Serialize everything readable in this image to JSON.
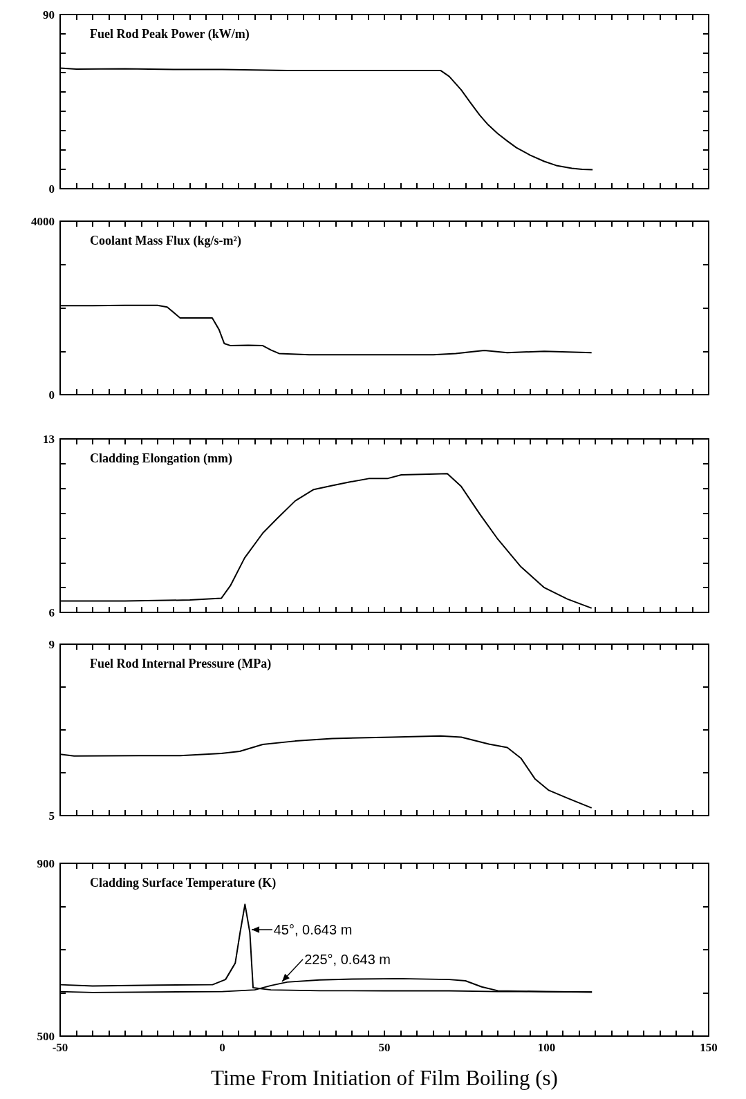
{
  "chart_data": [
    {
      "type": "line",
      "title": "Fuel Rod Peak Power (kW/m)",
      "xlim": [
        -50,
        150
      ],
      "ylim": [
        0,
        90
      ],
      "xticks": [
        -50,
        {
          "value": -45,
          "label": null
        },
        {
          "value": -40,
          "label": null
        },
        {
          "value": -35,
          "label": null
        },
        {
          "value": -30,
          "label": null
        },
        {
          "value": -25,
          "label": null
        },
        {
          "value": -20,
          "label": null
        },
        {
          "value": -15,
          "label": null
        },
        {
          "value": -10,
          "label": null
        },
        {
          "value": -5,
          "label": null
        },
        0,
        {
          "value": 5,
          "label": null
        },
        {
          "value": 10,
          "label": null
        },
        {
          "value": 15,
          "label": null
        },
        {
          "value": 20,
          "label": null
        },
        {
          "value": 25,
          "label": null
        },
        {
          "value": 30,
          "label": null
        },
        {
          "value": 35,
          "label": null
        },
        {
          "value": 40,
          "label": null
        },
        {
          "value": 45,
          "label": null
        },
        50,
        {
          "value": 55,
          "label": null
        },
        {
          "value": 60,
          "label": null
        },
        {
          "value": 65,
          "label": null
        },
        {
          "value": 70,
          "label": null
        },
        {
          "value": 75,
          "label": null
        },
        {
          "value": 80,
          "label": null
        },
        {
          "value": 85,
          "label": null
        },
        {
          "value": 90,
          "label": null
        },
        {
          "value": 95,
          "label": null
        },
        100,
        {
          "value": 105,
          "label": null
        },
        {
          "value": 110,
          "label": null
        },
        {
          "value": 115,
          "label": null
        },
        {
          "value": 120,
          "label": null
        },
        {
          "value": 125,
          "label": null
        },
        {
          "value": 130,
          "label": null
        },
        {
          "value": 135,
          "label": null
        },
        {
          "value": 140,
          "label": null
        },
        {
          "value": 145,
          "label": null
        },
        150
      ],
      "yticks": [
        0,
        {
          "value": 10,
          "label": null
        },
        {
          "value": 20,
          "label": null
        },
        {
          "value": 30,
          "label": null
        },
        {
          "value": 40,
          "label": null
        },
        {
          "value": 50,
          "label": null
        },
        {
          "value": 60,
          "label": null
        },
        {
          "value": 70,
          "label": null
        },
        {
          "value": 80,
          "label": null
        },
        90
      ],
      "tick_labels": "y",
      "x": [
        -50,
        -45,
        -30,
        -15,
        0,
        20,
        40,
        60,
        67.3,
        70,
        73.7,
        76.5,
        79.4,
        82,
        85,
        88,
        90.7,
        95,
        99.3,
        103,
        107.8,
        111,
        114.2
      ],
      "series": [
        {
          "color": "#000000",
          "values": [
            62.3,
            61.8,
            62,
            61.6,
            61.6,
            61.1,
            61.1,
            61.1,
            61.1,
            58,
            51,
            44.5,
            38,
            33,
            28.4,
            24.5,
            21.2,
            17.3,
            14.1,
            12,
            10.5,
            10,
            9.8
          ]
        }
      ]
    },
    {
      "type": "line",
      "title": "Coolant Mass Flux (kg/s-m²)",
      "xlim": [
        -50,
        150
      ],
      "ylim": [
        0,
        4000
      ],
      "xticks": [
        -50,
        {
          "value": -45,
          "label": null
        },
        {
          "value": -40,
          "label": null
        },
        {
          "value": -35,
          "label": null
        },
        {
          "value": -30,
          "label": null
        },
        {
          "value": -25,
          "label": null
        },
        {
          "value": -20,
          "label": null
        },
        {
          "value": -15,
          "label": null
        },
        {
          "value": -10,
          "label": null
        },
        {
          "value": -5,
          "label": null
        },
        0,
        {
          "value": 5,
          "label": null
        },
        {
          "value": 10,
          "label": null
        },
        {
          "value": 15,
          "label": null
        },
        {
          "value": 20,
          "label": null
        },
        {
          "value": 25,
          "label": null
        },
        {
          "value": 30,
          "label": null
        },
        {
          "value": 35,
          "label": null
        },
        {
          "value": 40,
          "label": null
        },
        {
          "value": 45,
          "label": null
        },
        50,
        {
          "value": 55,
          "label": null
        },
        {
          "value": 60,
          "label": null
        },
        {
          "value": 65,
          "label": null
        },
        {
          "value": 70,
          "label": null
        },
        {
          "value": 75,
          "label": null
        },
        {
          "value": 80,
          "label": null
        },
        {
          "value": 85,
          "label": null
        },
        {
          "value": 90,
          "label": null
        },
        {
          "value": 95,
          "label": null
        },
        100,
        {
          "value": 105,
          "label": null
        },
        {
          "value": 110,
          "label": null
        },
        {
          "value": 115,
          "label": null
        },
        {
          "value": 120,
          "label": null
        },
        {
          "value": 125,
          "label": null
        },
        {
          "value": 130,
          "label": null
        },
        {
          "value": 135,
          "label": null
        },
        {
          "value": 140,
          "label": null
        },
        {
          "value": 145,
          "label": null
        },
        150
      ],
      "yticks": [
        0,
        {
          "value": 1000,
          "label": null
        },
        {
          "value": 2000,
          "label": null
        },
        {
          "value": 3000,
          "label": null
        },
        4000
      ],
      "tick_labels": "y",
      "x": [
        -50,
        -40,
        -30,
        -20,
        -17,
        -13,
        -3.1,
        -1,
        0.6,
        2.6,
        8,
        12.5,
        15,
        17.5,
        26.8,
        40,
        55,
        65.1,
        72,
        80.8,
        87.9,
        99.3,
        113.9
      ],
      "series": [
        {
          "color": "#000000",
          "values": [
            2050,
            2050,
            2060,
            2060,
            2020,
            1770,
            1770,
            1500,
            1180,
            1130,
            1140,
            1130,
            1030,
            950,
            920,
            920,
            920,
            920,
            950,
            1020,
            970,
            1000,
            970
          ]
        }
      ]
    },
    {
      "type": "line",
      "title": "Cladding Elongation (mm)",
      "xlim": [
        -50,
        150
      ],
      "ylim": [
        6,
        13
      ],
      "xticks": [
        -50,
        {
          "value": -45,
          "label": null
        },
        {
          "value": -40,
          "label": null
        },
        {
          "value": -35,
          "label": null
        },
        {
          "value": -30,
          "label": null
        },
        {
          "value": -25,
          "label": null
        },
        {
          "value": -20,
          "label": null
        },
        {
          "value": -15,
          "label": null
        },
        {
          "value": -10,
          "label": null
        },
        {
          "value": -5,
          "label": null
        },
        0,
        {
          "value": 5,
          "label": null
        },
        {
          "value": 10,
          "label": null
        },
        {
          "value": 15,
          "label": null
        },
        {
          "value": 20,
          "label": null
        },
        {
          "value": 25,
          "label": null
        },
        {
          "value": 30,
          "label": null
        },
        {
          "value": 35,
          "label": null
        },
        {
          "value": 40,
          "label": null
        },
        {
          "value": 45,
          "label": null
        },
        50,
        {
          "value": 55,
          "label": null
        },
        {
          "value": 60,
          "label": null
        },
        {
          "value": 65,
          "label": null
        },
        {
          "value": 70,
          "label": null
        },
        {
          "value": 75,
          "label": null
        },
        {
          "value": 80,
          "label": null
        },
        {
          "value": 85,
          "label": null
        },
        {
          "value": 90,
          "label": null
        },
        {
          "value": 95,
          "label": null
        },
        100,
        {
          "value": 105,
          "label": null
        },
        {
          "value": 110,
          "label": null
        },
        {
          "value": 115,
          "label": null
        },
        {
          "value": 120,
          "label": null
        },
        {
          "value": 125,
          "label": null
        },
        {
          "value": 130,
          "label": null
        },
        {
          "value": 135,
          "label": null
        },
        {
          "value": 140,
          "label": null
        },
        {
          "value": 145,
          "label": null
        },
        150
      ],
      "yticks": [
        6,
        {
          "value": 7,
          "label": null
        },
        {
          "value": 8,
          "label": null
        },
        {
          "value": 9,
          "label": null
        },
        {
          "value": 10,
          "label": null
        },
        {
          "value": 11,
          "label": null
        },
        {
          "value": 12,
          "label": null
        },
        13
      ],
      "tick_labels": "y",
      "x": [
        -50,
        -30,
        -10,
        -0.3,
        2.6,
        6.9,
        12.5,
        16.8,
        22.5,
        28.2,
        33.9,
        39.6,
        45.2,
        50.9,
        55.2,
        63.7,
        69.4,
        73.7,
        79.4,
        85,
        92.1,
        99.3,
        106.4,
        113.9
      ],
      "series": [
        {
          "color": "#000000",
          "values": [
            6.46,
            6.46,
            6.5,
            6.57,
            7.1,
            8.2,
            9.2,
            9.77,
            10.5,
            10.96,
            11.12,
            11.27,
            11.4,
            11.4,
            11.55,
            11.58,
            11.6,
            11.08,
            9.97,
            8.95,
            7.84,
            7.0,
            6.54,
            6.17
          ]
        }
      ]
    },
    {
      "type": "line",
      "title": "Fuel Rod Internal Pressure (MPa)",
      "xlim": [
        -50,
        150
      ],
      "ylim": [
        5,
        9
      ],
      "xticks": [
        -50,
        {
          "value": -45,
          "label": null
        },
        {
          "value": -40,
          "label": null
        },
        {
          "value": -35,
          "label": null
        },
        {
          "value": -30,
          "label": null
        },
        {
          "value": -25,
          "label": null
        },
        {
          "value": -20,
          "label": null
        },
        {
          "value": -15,
          "label": null
        },
        {
          "value": -10,
          "label": null
        },
        {
          "value": -5,
          "label": null
        },
        0,
        {
          "value": 5,
          "label": null
        },
        {
          "value": 10,
          "label": null
        },
        {
          "value": 15,
          "label": null
        },
        {
          "value": 20,
          "label": null
        },
        {
          "value": 25,
          "label": null
        },
        {
          "value": 30,
          "label": null
        },
        {
          "value": 35,
          "label": null
        },
        {
          "value": 40,
          "label": null
        },
        {
          "value": 45,
          "label": null
        },
        50,
        {
          "value": 55,
          "label": null
        },
        {
          "value": 60,
          "label": null
        },
        {
          "value": 65,
          "label": null
        },
        {
          "value": 70,
          "label": null
        },
        {
          "value": 75,
          "label": null
        },
        {
          "value": 80,
          "label": null
        },
        {
          "value": 85,
          "label": null
        },
        {
          "value": 90,
          "label": null
        },
        {
          "value": 95,
          "label": null
        },
        100,
        {
          "value": 105,
          "label": null
        },
        {
          "value": 110,
          "label": null
        },
        {
          "value": 115,
          "label": null
        },
        {
          "value": 120,
          "label": null
        },
        {
          "value": 125,
          "label": null
        },
        {
          "value": 130,
          "label": null
        },
        {
          "value": 135,
          "label": null
        },
        {
          "value": 140,
          "label": null
        },
        {
          "value": 145,
          "label": null
        },
        150
      ],
      "yticks": [
        5,
        {
          "value": 6,
          "label": null
        },
        {
          "value": 7,
          "label": null
        },
        {
          "value": 8,
          "label": null
        },
        9
      ],
      "tick_labels": "y",
      "x": [
        -50,
        -45.7,
        -25.8,
        -13,
        -0.25,
        5.4,
        12.5,
        22.5,
        33.9,
        52.3,
        67.3,
        73.7,
        82.2,
        87.9,
        92.1,
        96.4,
        100.7,
        106.4,
        113.9
      ],
      "series": [
        {
          "color": "#000000",
          "values": [
            6.43,
            6.39,
            6.4,
            6.4,
            6.45,
            6.5,
            6.66,
            6.74,
            6.8,
            6.83,
            6.86,
            6.83,
            6.67,
            6.59,
            6.34,
            5.86,
            5.59,
            5.41,
            5.18
          ]
        }
      ]
    },
    {
      "type": "line",
      "title": "Cladding Surface Temperature (K)",
      "xlabel": "Time From Initiation of Film Boiling (s)",
      "xlim": [
        -50,
        150
      ],
      "ylim": [
        500,
        900
      ],
      "xticks": [
        -50,
        {
          "value": -45,
          "label": null
        },
        {
          "value": -40,
          "label": null
        },
        {
          "value": -35,
          "label": null
        },
        {
          "value": -30,
          "label": null
        },
        {
          "value": -25,
          "label": null
        },
        {
          "value": -20,
          "label": null
        },
        {
          "value": -15,
          "label": null
        },
        {
          "value": -10,
          "label": null
        },
        {
          "value": -5,
          "label": null
        },
        0,
        {
          "value": 5,
          "label": null
        },
        {
          "value": 10,
          "label": null
        },
        {
          "value": 15,
          "label": null
        },
        {
          "value": 20,
          "label": null
        },
        {
          "value": 25,
          "label": null
        },
        {
          "value": 30,
          "label": null
        },
        {
          "value": 35,
          "label": null
        },
        {
          "value": 40,
          "label": null
        },
        {
          "value": 45,
          "label": null
        },
        50,
        {
          "value": 55,
          "label": null
        },
        {
          "value": 60,
          "label": null
        },
        {
          "value": 65,
          "label": null
        },
        {
          "value": 70,
          "label": null
        },
        {
          "value": 75,
          "label": null
        },
        {
          "value": 80,
          "label": null
        },
        {
          "value": 85,
          "label": null
        },
        {
          "value": 90,
          "label": null
        },
        {
          "value": 95,
          "label": null
        },
        100,
        {
          "value": 105,
          "label": null
        },
        {
          "value": 110,
          "label": null
        },
        {
          "value": 115,
          "label": null
        },
        {
          "value": 120,
          "label": null
        },
        {
          "value": 125,
          "label": null
        },
        {
          "value": 130,
          "label": null
        },
        {
          "value": 135,
          "label": null
        },
        {
          "value": 140,
          "label": null
        },
        {
          "value": 145,
          "label": null
        },
        150
      ],
      "yticks": [
        500,
        {
          "value": 600,
          "label": null
        },
        {
          "value": 700,
          "label": null
        },
        {
          "value": 800,
          "label": null
        },
        900
      ],
      "series": [
        {
          "color": "#000000",
          "x": [
            -50,
            -40,
            -20,
            -3,
            1,
            4,
            5.5,
            7,
            8.5,
            9.5,
            15,
            30,
            50,
            70,
            85,
            100,
            114
          ],
          "values": [
            619,
            616,
            618,
            619,
            631,
            669,
            740,
            805,
            740,
            612,
            607,
            605,
            605,
            605,
            603,
            603,
            602
          ]
        },
        {
          "color": "#000000",
          "x": [
            -50,
            -40,
            -20,
            0,
            10,
            15,
            20,
            30,
            40,
            55,
            70,
            75,
            80,
            85,
            100,
            114
          ],
          "values": [
            603,
            601,
            602,
            603,
            607,
            617,
            625,
            630,
            632,
            633,
            631,
            628,
            614,
            605,
            603,
            602
          ]
        }
      ],
      "annotations": [
        {
          "text": "45°, 0.643 m",
          "x": 9,
          "y": 746
        },
        {
          "text": "225°, 0.643 m",
          "x": 18.5,
          "y": 627
        }
      ]
    }
  ]
}
